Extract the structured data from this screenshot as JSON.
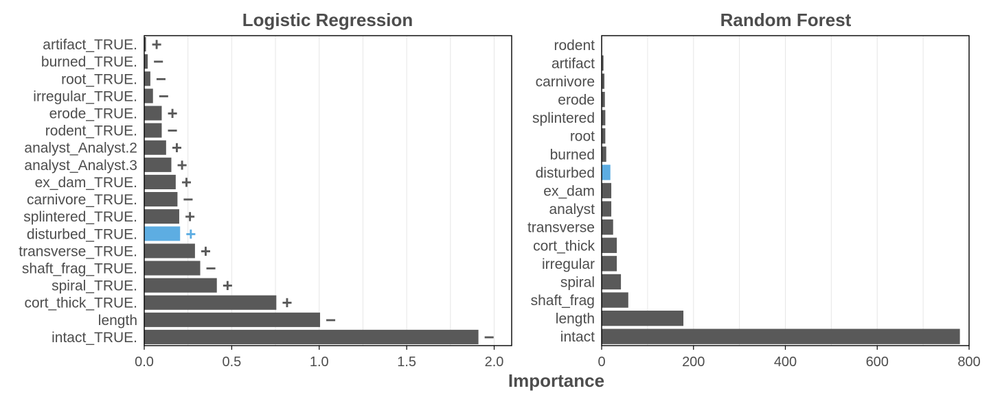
{
  "figure": {
    "xlabel": "Importance"
  },
  "colors": {
    "bar": "#595959",
    "highlight": "#5dade2",
    "grid": "#e6e6e6",
    "text": "#4d4d4d",
    "axis": "#000000"
  },
  "chart_data": [
    {
      "type": "bar",
      "orientation": "horizontal",
      "title": "Logistic Regression",
      "xlim": [
        0,
        2.1
      ],
      "xticks": [
        "0.0",
        "0.5",
        "1.0",
        "1.5",
        "2.0"
      ],
      "xtick_values": [
        0,
        0.5,
        1.0,
        1.5,
        2.0
      ],
      "categories": [
        "artifact_TRUE.",
        "burned_TRUE.",
        "root_TRUE.",
        "irregular_TRUE.",
        "erode_TRUE.",
        "rodent_TRUE.",
        "analyst_Analyst.2",
        "analyst_Analyst.3",
        "ex_dam_TRUE.",
        "carnivore_TRUE.",
        "splintered_TRUE.",
        "disturbed_TRUE.",
        "transverse_TRUE.",
        "shaft_frag_TRUE.",
        "spiral_TRUE.",
        "cort_thick_TRUE.",
        "length",
        "intact_TRUE."
      ],
      "values": [
        0.01,
        0.02,
        0.035,
        0.05,
        0.1,
        0.1,
        0.125,
        0.155,
        0.18,
        0.19,
        0.2,
        0.205,
        0.29,
        0.32,
        0.415,
        0.755,
        1.005,
        1.91
      ],
      "signs": [
        "+",
        "−",
        "−",
        "−",
        "+",
        "−",
        "+",
        "+",
        "+",
        "−",
        "+",
        "+",
        "+",
        "−",
        "+",
        "+",
        "−",
        "−"
      ],
      "highlight": "disturbed_TRUE."
    },
    {
      "type": "bar",
      "orientation": "horizontal",
      "title": "Random Forest",
      "xlim": [
        0,
        800
      ],
      "xticks": [
        "0",
        "200",
        "400",
        "600",
        "800"
      ],
      "xtick_values": [
        0,
        200,
        400,
        600,
        800
      ],
      "categories": [
        "rodent",
        "artifact",
        "carnivore",
        "erode",
        "splintered",
        "root",
        "burned",
        "disturbed",
        "ex_dam",
        "analyst",
        "transverse",
        "cort_thick",
        "irregular",
        "spiral",
        "shaft_frag",
        "length",
        "intact"
      ],
      "values": [
        1,
        4,
        6,
        7,
        8,
        8,
        10,
        19,
        21,
        21,
        25,
        33,
        33,
        42,
        58,
        178,
        780
      ],
      "highlight": "disturbed"
    }
  ]
}
